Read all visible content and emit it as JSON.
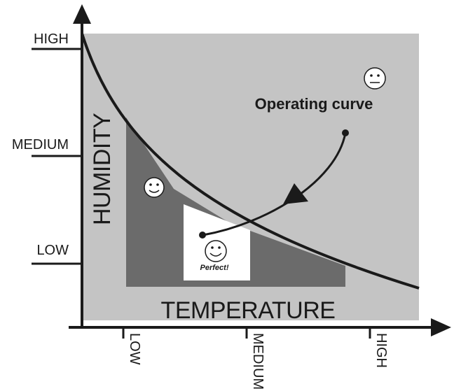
{
  "diagram": {
    "y_axis": {
      "title": "HUMIDITY",
      "ticks": [
        "HIGH",
        "MEDIUM",
        "LOW"
      ]
    },
    "x_axis": {
      "title": "TEMPERATURE",
      "ticks": [
        "LOW",
        "MEDIUM",
        "HIGH"
      ]
    },
    "callout_label": "Operating curve",
    "perfect_label": "Perfect!",
    "icons": [
      "neutral-face-icon",
      "smile-face-icon",
      "happy-face-icon"
    ],
    "colors": {
      "light_region": "#c4c4c4",
      "medium_region": "#6b6b6b",
      "perfect_region": "#ffffff",
      "ink": "#1a1a1a"
    }
  }
}
